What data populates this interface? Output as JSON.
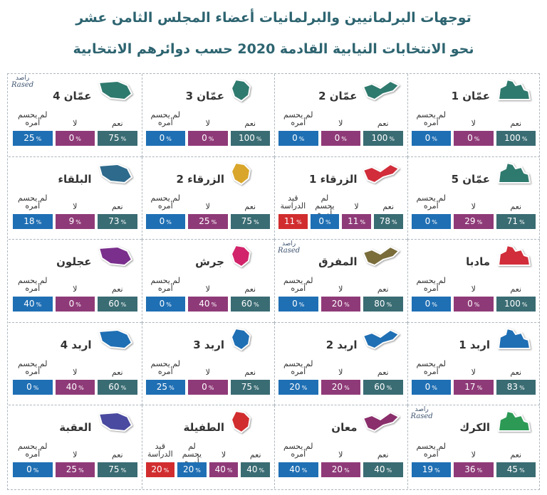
{
  "title_line1": "توجهات البرلمانيين والبرلمانيات أعضاء المجلس الثامن عشر",
  "title_line2": "نحو الانتخابات النيابية القادمة 2020 حسب دوائرهم الانتخابية",
  "labels": {
    "yes": "نعم",
    "no": "لا",
    "undecided_1": "لم يحسم",
    "undecided_2": "أمره",
    "study_1": "قيد",
    "study_2": "الدراسة"
  },
  "rased": {
    "ar": "راصد",
    "en": "Rased"
  },
  "colors": {
    "yes": "#3a6c73",
    "no": "#8f3a78",
    "undecided": "#1f6fb4",
    "study": "#d12d2f",
    "title": "#2d6470"
  },
  "chart_data": {
    "type": "table",
    "title": "توجهات البرلمانيين والبرلمانيات أعضاء المجلس الثامن عشر نحو الانتخابات النيابية القادمة 2020 حسب دوائرهم الانتخابية",
    "unit": "%",
    "districts": [
      {
        "name": "عمّان 1",
        "yes": 100,
        "no": 0,
        "undecided": 0,
        "map_color": "#2f7a6e",
        "rased": false
      },
      {
        "name": "عمّان 2",
        "yes": 100,
        "no": 0,
        "undecided": 0,
        "map_color": "#2f7a6e",
        "rased": false
      },
      {
        "name": "عمّان 3",
        "yes": 100,
        "no": 0,
        "undecided": 0,
        "map_color": "#2f7a6e",
        "rased": false
      },
      {
        "name": "عمّان 4",
        "yes": 75,
        "no": 0,
        "undecided": 25,
        "map_color": "#2f7a6e",
        "rased": true
      },
      {
        "name": "عمّان 5",
        "yes": 71,
        "no": 29,
        "undecided": 0,
        "map_color": "#2f7a6e",
        "rased": false
      },
      {
        "name": "الزرقاء 1",
        "yes": 78,
        "no": 11,
        "undecided": 0,
        "study": 11,
        "map_color": "#d12d3a",
        "rased": false
      },
      {
        "name": "الزرقاء 2",
        "yes": 75,
        "no": 25,
        "undecided": 0,
        "map_color": "#d9a62b",
        "rased": false
      },
      {
        "name": "البلقاء",
        "yes": 73,
        "no": 9,
        "undecided": 18,
        "map_color": "#2e6a8c",
        "rased": false
      },
      {
        "name": "مادبا",
        "yes": 100,
        "no": 0,
        "undecided": 0,
        "map_color": "#d12d3a",
        "rased": false
      },
      {
        "name": "المفرق",
        "yes": 80,
        "no": 20,
        "undecided": 0,
        "map_color": "#7a6d3a",
        "rased": true
      },
      {
        "name": "جرش",
        "yes": 60,
        "no": 40,
        "undecided": 0,
        "map_color": "#d1246b",
        "rased": false
      },
      {
        "name": "عجلون",
        "yes": 60,
        "no": 0,
        "undecided": 40,
        "map_color": "#7a2f8c",
        "rased": false
      },
      {
        "name": "اربد 1",
        "yes": 83,
        "no": 17,
        "undecided": 0,
        "map_color": "#1f6fb4",
        "rased": false
      },
      {
        "name": "اربد 2",
        "yes": 60,
        "no": 20,
        "undecided": 20,
        "map_color": "#1f6fb4",
        "rased": false
      },
      {
        "name": "اربد 3",
        "yes": 75,
        "no": 0,
        "undecided": 25,
        "map_color": "#1f6fb4",
        "rased": false
      },
      {
        "name": "اربد 4",
        "yes": 60,
        "no": 40,
        "undecided": 0,
        "map_color": "#1f6fb4",
        "rased": false
      },
      {
        "name": "الكرك",
        "yes": 45,
        "no": 36,
        "undecided": 19,
        "map_color": "#2c9a55",
        "rased": true
      },
      {
        "name": "معان",
        "yes": 40,
        "no": 20,
        "undecided": 40,
        "map_color": "#8a2f6c",
        "rased": false
      },
      {
        "name": "الطفيلة",
        "yes": 40,
        "no": 40,
        "undecided": 20,
        "study": 20,
        "map_color": "#d12d2f",
        "rased": false
      },
      {
        "name": "العقبة",
        "yes": 75,
        "no": 25,
        "undecided": 0,
        "map_color": "#4a4aa0",
        "rased": false
      }
    ]
  }
}
